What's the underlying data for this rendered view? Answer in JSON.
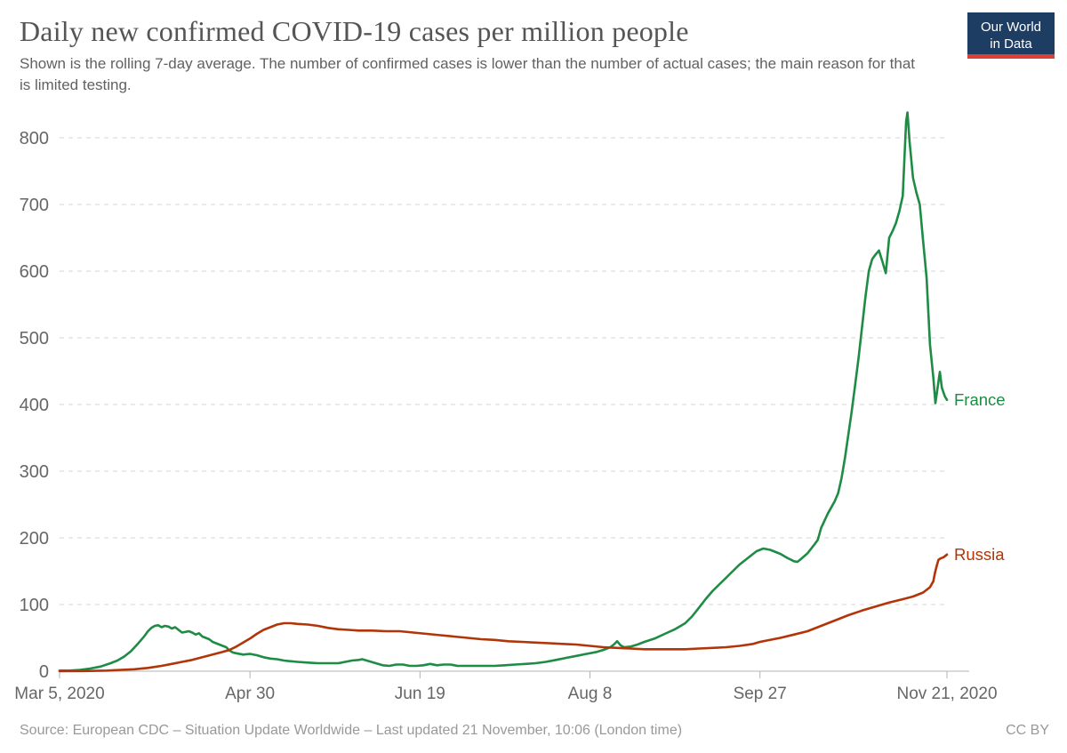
{
  "header": {
    "title": "Daily new confirmed COVID-19 cases per million people",
    "subtitle": "Shown is the rolling 7-day average. The number of confirmed cases is lower than the number of actual cases; the main reason for that is limited testing.",
    "logo": {
      "line1": "Our World",
      "line2": "in Data",
      "bg_color": "#1d3d63",
      "bar_color": "#dc3f34"
    }
  },
  "footer": {
    "source": "Source: European CDC – Situation Update Worldwide – Last updated 21 November, 10:06 (London time)",
    "license": "CC BY"
  },
  "chart_data": {
    "type": "line",
    "title": "Daily new confirmed COVID-19 cases per million people",
    "xlabel": "",
    "ylabel": "",
    "x_unit": "days since Mar 5, 2020",
    "xlim": [
      0,
      261
    ],
    "ylim": [
      0,
      840
    ],
    "grid": "horizontal dashed",
    "legend_position": "line-end labels",
    "x_ticks": [
      {
        "day": 0,
        "label": "Mar 5, 2020"
      },
      {
        "day": 56,
        "label": "Apr 30"
      },
      {
        "day": 106,
        "label": "Jun 19"
      },
      {
        "day": 156,
        "label": "Aug 8"
      },
      {
        "day": 206,
        "label": "Sep 27"
      },
      {
        "day": 261,
        "label": "Nov 21, 2020"
      }
    ],
    "y_ticks": [
      0,
      100,
      200,
      300,
      400,
      500,
      600,
      700,
      800
    ],
    "series": [
      {
        "name": "France",
        "color": "#1e8c45",
        "points": [
          [
            0,
            1
          ],
          [
            3,
            1
          ],
          [
            6,
            2
          ],
          [
            9,
            4
          ],
          [
            12,
            7
          ],
          [
            15,
            12
          ],
          [
            17,
            16
          ],
          [
            19,
            22
          ],
          [
            21,
            30
          ],
          [
            23,
            41
          ],
          [
            25,
            53
          ],
          [
            26,
            60
          ],
          [
            27,
            65
          ],
          [
            28,
            68
          ],
          [
            29,
            69
          ],
          [
            30,
            66
          ],
          [
            31,
            68
          ],
          [
            32,
            67
          ],
          [
            33,
            64
          ],
          [
            34,
            66
          ],
          [
            35,
            62
          ],
          [
            36,
            58
          ],
          [
            37,
            59
          ],
          [
            38,
            60
          ],
          [
            39,
            58
          ],
          [
            40,
            55
          ],
          [
            41,
            57
          ],
          [
            42,
            52
          ],
          [
            43,
            50
          ],
          [
            44,
            48
          ],
          [
            45,
            44
          ],
          [
            46,
            42
          ],
          [
            47,
            40
          ],
          [
            48,
            38
          ],
          [
            49,
            36
          ],
          [
            50,
            31
          ],
          [
            51,
            28
          ],
          [
            52,
            27
          ],
          [
            54,
            25
          ],
          [
            56,
            26
          ],
          [
            58,
            24
          ],
          [
            60,
            21
          ],
          [
            62,
            19
          ],
          [
            64,
            18
          ],
          [
            66,
            16
          ],
          [
            68,
            15
          ],
          [
            70,
            14
          ],
          [
            73,
            13
          ],
          [
            76,
            12
          ],
          [
            79,
            12
          ],
          [
            82,
            12
          ],
          [
            84,
            14
          ],
          [
            86,
            16
          ],
          [
            88,
            17
          ],
          [
            89,
            18
          ],
          [
            91,
            15
          ],
          [
            93,
            12
          ],
          [
            95,
            9
          ],
          [
            97,
            8
          ],
          [
            99,
            10
          ],
          [
            101,
            10
          ],
          [
            103,
            8
          ],
          [
            105,
            8
          ],
          [
            107,
            9
          ],
          [
            109,
            11
          ],
          [
            111,
            9
          ],
          [
            113,
            10
          ],
          [
            115,
            10
          ],
          [
            117,
            8
          ],
          [
            120,
            8
          ],
          [
            124,
            8
          ],
          [
            128,
            8
          ],
          [
            131,
            9
          ],
          [
            134,
            10
          ],
          [
            137,
            11
          ],
          [
            140,
            12
          ],
          [
            143,
            14
          ],
          [
            146,
            17
          ],
          [
            149,
            20
          ],
          [
            152,
            23
          ],
          [
            155,
            26
          ],
          [
            158,
            29
          ],
          [
            160,
            32
          ],
          [
            162,
            36
          ],
          [
            163,
            40
          ],
          [
            164,
            45
          ],
          [
            165,
            39
          ],
          [
            166,
            36
          ],
          [
            168,
            37
          ],
          [
            170,
            40
          ],
          [
            172,
            44
          ],
          [
            175,
            49
          ],
          [
            178,
            56
          ],
          [
            181,
            63
          ],
          [
            184,
            72
          ],
          [
            186,
            82
          ],
          [
            188,
            95
          ],
          [
            190,
            108
          ],
          [
            192,
            120
          ],
          [
            194,
            130
          ],
          [
            196,
            140
          ],
          [
            198,
            150
          ],
          [
            200,
            160
          ],
          [
            202,
            168
          ],
          [
            204,
            176
          ],
          [
            205,
            180
          ],
          [
            207,
            184
          ],
          [
            209,
            182
          ],
          [
            210,
            180
          ],
          [
            212,
            176
          ],
          [
            214,
            170
          ],
          [
            216,
            165
          ],
          [
            217,
            164
          ],
          [
            218,
            168
          ],
          [
            220,
            177
          ],
          [
            222,
            190
          ],
          [
            223,
            197
          ],
          [
            224,
            215
          ],
          [
            226,
            237
          ],
          [
            228,
            255
          ],
          [
            229,
            267
          ],
          [
            230,
            290
          ],
          [
            231,
            320
          ],
          [
            232,
            355
          ],
          [
            233,
            390
          ],
          [
            234,
            430
          ],
          [
            235,
            470
          ],
          [
            236,
            515
          ],
          [
            237,
            560
          ],
          [
            238,
            600
          ],
          [
            239,
            618
          ],
          [
            240,
            625
          ],
          [
            241,
            631
          ],
          [
            242,
            615
          ],
          [
            243,
            597
          ],
          [
            244,
            650
          ],
          [
            245,
            660
          ],
          [
            246,
            672
          ],
          [
            247,
            690
          ],
          [
            248,
            713
          ],
          [
            248.5,
            770
          ],
          [
            249,
            825
          ],
          [
            249.4,
            838
          ],
          [
            250,
            795
          ],
          [
            251,
            740
          ],
          [
            252,
            718
          ],
          [
            253,
            700
          ],
          [
            254,
            645
          ],
          [
            255,
            590
          ],
          [
            256,
            490
          ],
          [
            257,
            440
          ],
          [
            257.6,
            402
          ],
          [
            258.9,
            449
          ],
          [
            259.5,
            425
          ],
          [
            260.4,
            412
          ],
          [
            261,
            407
          ]
        ]
      },
      {
        "name": "Russia",
        "color": "#b13507",
        "points": [
          [
            0,
            0.1
          ],
          [
            7,
            0.3
          ],
          [
            14,
            1
          ],
          [
            18,
            2
          ],
          [
            22,
            3
          ],
          [
            26,
            5
          ],
          [
            30,
            8
          ],
          [
            33,
            11
          ],
          [
            36,
            14
          ],
          [
            39,
            17
          ],
          [
            42,
            21
          ],
          [
            45,
            25
          ],
          [
            48,
            29
          ],
          [
            50,
            32
          ],
          [
            52,
            37
          ],
          [
            54,
            43
          ],
          [
            56,
            49
          ],
          [
            58,
            56
          ],
          [
            60,
            62
          ],
          [
            62,
            66
          ],
          [
            64,
            70
          ],
          [
            66,
            72
          ],
          [
            68,
            72
          ],
          [
            70,
            71
          ],
          [
            73,
            70
          ],
          [
            76,
            68
          ],
          [
            79,
            65
          ],
          [
            82,
            63
          ],
          [
            85,
            62
          ],
          [
            88,
            61
          ],
          [
            92,
            61
          ],
          [
            96,
            60
          ],
          [
            100,
            60
          ],
          [
            104,
            58
          ],
          [
            108,
            56
          ],
          [
            112,
            54
          ],
          [
            116,
            52
          ],
          [
            120,
            50
          ],
          [
            124,
            48
          ],
          [
            128,
            47
          ],
          [
            132,
            45
          ],
          [
            136,
            44
          ],
          [
            140,
            43
          ],
          [
            144,
            42
          ],
          [
            148,
            41
          ],
          [
            152,
            40
          ],
          [
            156,
            38
          ],
          [
            160,
            36
          ],
          [
            164,
            35
          ],
          [
            168,
            34
          ],
          [
            172,
            33
          ],
          [
            176,
            33
          ],
          [
            180,
            33
          ],
          [
            184,
            33
          ],
          [
            188,
            34
          ],
          [
            192,
            35
          ],
          [
            196,
            36
          ],
          [
            200,
            38
          ],
          [
            204,
            41
          ],
          [
            206,
            44
          ],
          [
            208,
            46
          ],
          [
            212,
            50
          ],
          [
            216,
            55
          ],
          [
            220,
            60
          ],
          [
            224,
            68
          ],
          [
            228,
            76
          ],
          [
            232,
            84
          ],
          [
            236,
            91
          ],
          [
            240,
            97
          ],
          [
            244,
            103
          ],
          [
            248,
            108
          ],
          [
            251,
            112
          ],
          [
            254,
            118
          ],
          [
            256,
            126
          ],
          [
            257,
            135
          ],
          [
            257.5,
            148
          ],
          [
            258,
            158
          ],
          [
            258.5,
            167
          ],
          [
            259,
            169
          ],
          [
            260,
            171
          ],
          [
            261,
            175
          ]
        ]
      }
    ],
    "style": {
      "gridline_color": "#d5d5d5",
      "axis_line_color": "#b3b3b3",
      "tick_label_color": "#666666",
      "line_width": 2.6
    }
  }
}
